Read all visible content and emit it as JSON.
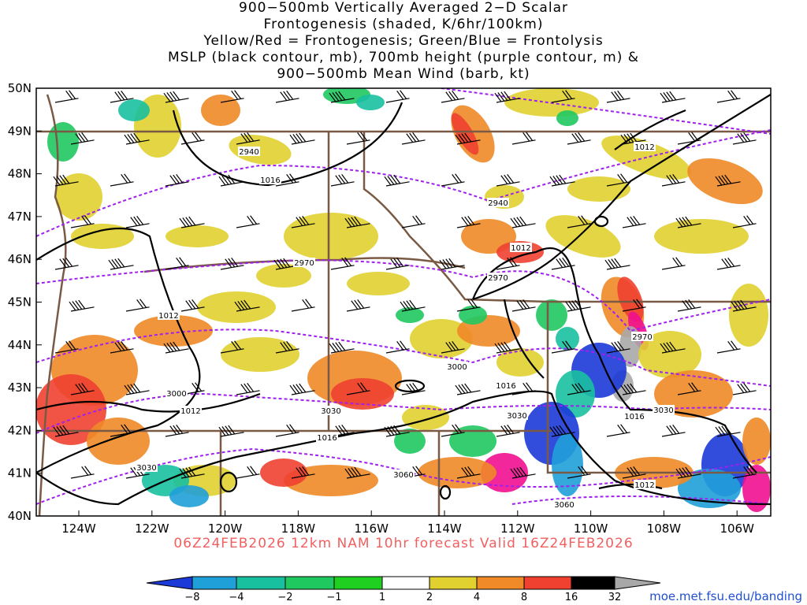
{
  "title": {
    "lines": [
      "900−500mb Vertically Averaged 2−D Scalar",
      "Frontogenesis (shaded, K/6hr/100km)",
      "Yellow/Red = Frontogenesis;  Green/Blue = Frontolysis",
      "MSLP (black contour, mb), 700mb height (purple contour, m) &",
      "900−500mb Mean Wind (barb, kt)"
    ]
  },
  "map": {
    "lat_ticks": [
      "50N",
      "49N",
      "48N",
      "47N",
      "46N",
      "45N",
      "44N",
      "43N",
      "42N",
      "41N",
      "40N"
    ],
    "lon_ticks": [
      "124W",
      "122W",
      "120W",
      "118W",
      "116W",
      "114W",
      "112W",
      "110W",
      "108W",
      "106W"
    ],
    "contour_labels": {
      "mslp": [
        "1016",
        "1012",
        "1012",
        "1012",
        "1016",
        "1016",
        "1012",
        "1016",
        "1012"
      ],
      "height": [
        "2940",
        "2940",
        "2970",
        "2970",
        "2970",
        "3000",
        "3000",
        "3030",
        "3030",
        "3030",
        "3060",
        "3060",
        "3030"
      ]
    }
  },
  "forecast_text": "06Z24FEB2026 12km NAM 10hr forecast Valid 16Z24FEB2026",
  "colorbar": {
    "labels": [
      "−8",
      "−4",
      "−2",
      "−1",
      "1",
      "2",
      "4",
      "8",
      "16",
      "32"
    ],
    "colors": [
      "#1c3ad8",
      "#20a0d8",
      "#18c0a0",
      "#20c860",
      "#20d020",
      "#ffffff",
      "#e0d030",
      "#f08a28",
      "#f04030",
      "#f01090",
      "#000000",
      "#a8a8a8"
    ]
  },
  "credit": "moe.met.fsu.edu/banding"
}
